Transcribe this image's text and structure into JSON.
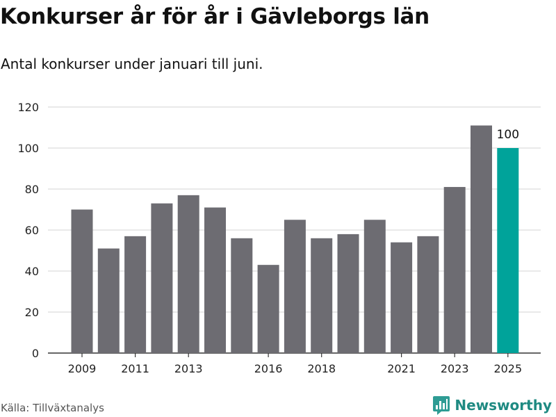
{
  "header": {
    "title": "Konkurser år för år i Gävleborgs län",
    "subtitle": "Antal konkurser under januari till juni."
  },
  "footer": {
    "source": "Källa: Tillväxtanalys",
    "brand": "Newsworthy"
  },
  "colors": {
    "bar": "#6d6c72",
    "highlight": "#00a39a",
    "grid": "#dcdcdc",
    "brand": "#1f8a82"
  },
  "chart_data": {
    "type": "bar",
    "title": "Konkurser år för år i Gävleborgs län",
    "subtitle": "Antal konkurser under januari till juni.",
    "xlabel": "",
    "ylabel": "",
    "categories": [
      "2009",
      "2010",
      "2011",
      "2012",
      "2013",
      "2014",
      "2015",
      "2016",
      "2017",
      "2018",
      "2019",
      "2020",
      "2021",
      "2022",
      "2023",
      "2024",
      "2025"
    ],
    "values": [
      70,
      51,
      57,
      73,
      77,
      71,
      56,
      43,
      65,
      56,
      58,
      65,
      54,
      57,
      81,
      111,
      100
    ],
    "highlight_index": 16,
    "data_labels": [
      {
        "index": 16,
        "text": "100"
      }
    ],
    "x_tick_labels": [
      "2009",
      "2011",
      "2013",
      "2016",
      "2018",
      "2021",
      "2023",
      "2025"
    ],
    "ylim": [
      0,
      120
    ],
    "yticks": [
      0,
      20,
      40,
      60,
      80,
      100,
      120
    ],
    "grid": true,
    "legend": "none"
  }
}
